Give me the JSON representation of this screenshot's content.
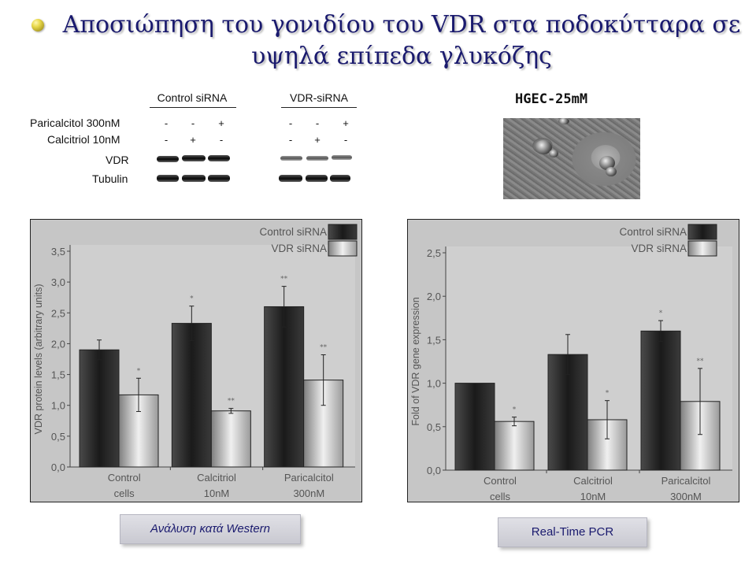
{
  "title": "Αποσιώπηση του γονιδίου του VDR στα ποδοκύτταρα σε υψηλά επίπεδα γλυκόζης",
  "western_blot": {
    "groups": [
      "Control siRNA",
      "VDR-siRNA"
    ],
    "rows": [
      {
        "label": "Paricalcitol 300nM",
        "control": [
          "-",
          "-",
          "+"
        ],
        "vdr": [
          "-",
          "-",
          "+"
        ]
      },
      {
        "label": "Calcitriol 10nM",
        "control": [
          "-",
          "+",
          "-"
        ],
        "vdr": [
          "-",
          "+",
          "-"
        ]
      }
    ],
    "bands": [
      "VDR",
      "Tubulin"
    ]
  },
  "cell_image_label": "HGEC-25mM",
  "chart_data": [
    {
      "type": "bar",
      "ylabel": "VDR protein levels (arbitrary units)",
      "xlabel": "",
      "categories": [
        [
          "Control",
          "cells"
        ],
        [
          "Calcitriol",
          "10nM"
        ],
        [
          "Paricalcitol",
          "300nM"
        ]
      ],
      "series": [
        {
          "name": "Control siRNA",
          "values": [
            1.9,
            2.33,
            2.6
          ],
          "errors": [
            0.16,
            0.28,
            0.33
          ],
          "sig": [
            "",
            "*",
            "**"
          ],
          "color": "#2a2a2a"
        },
        {
          "name": "VDR siRNA",
          "values": [
            1.17,
            0.91,
            1.41
          ],
          "errors": [
            0.27,
            0.04,
            0.41
          ],
          "sig": [
            "*",
            "**",
            "**"
          ],
          "color": "#b8b8b8"
        }
      ],
      "ylim": [
        0,
        3.5
      ],
      "yticks": [
        "0,0",
        "0,5",
        "1,0",
        "1,5",
        "2,0",
        "2,5",
        "3,0",
        "3,5"
      ],
      "grid": false,
      "legend": "top-right"
    },
    {
      "type": "bar",
      "ylabel": "Fold of VDR gene expression",
      "xlabel": "",
      "categories": [
        [
          "Control",
          "cells"
        ],
        [
          "Calcitriol",
          "10nM"
        ],
        [
          "Paricalcitol",
          "300nM"
        ]
      ],
      "series": [
        {
          "name": "Control siRNA",
          "values": [
            1.0,
            1.33,
            1.6
          ],
          "errors": [
            0.0,
            0.23,
            0.12
          ],
          "sig": [
            "",
            "",
            "*"
          ],
          "color": "#2a2a2a"
        },
        {
          "name": "VDR siRNA",
          "values": [
            0.56,
            0.58,
            0.79
          ],
          "errors": [
            0.05,
            0.22,
            0.38
          ],
          "sig": [
            "*",
            "*",
            "**"
          ],
          "color": "#b8b8b8"
        }
      ],
      "ylim": [
        0,
        2.5
      ],
      "yticks": [
        "0,0",
        "0,5",
        "1,0",
        "1,5",
        "2,0",
        "2,5"
      ],
      "grid": false,
      "legend": "top-right"
    }
  ],
  "buttons": {
    "western": "Ανάλυση κατά Western",
    "pcr": "Real-Time PCR"
  }
}
